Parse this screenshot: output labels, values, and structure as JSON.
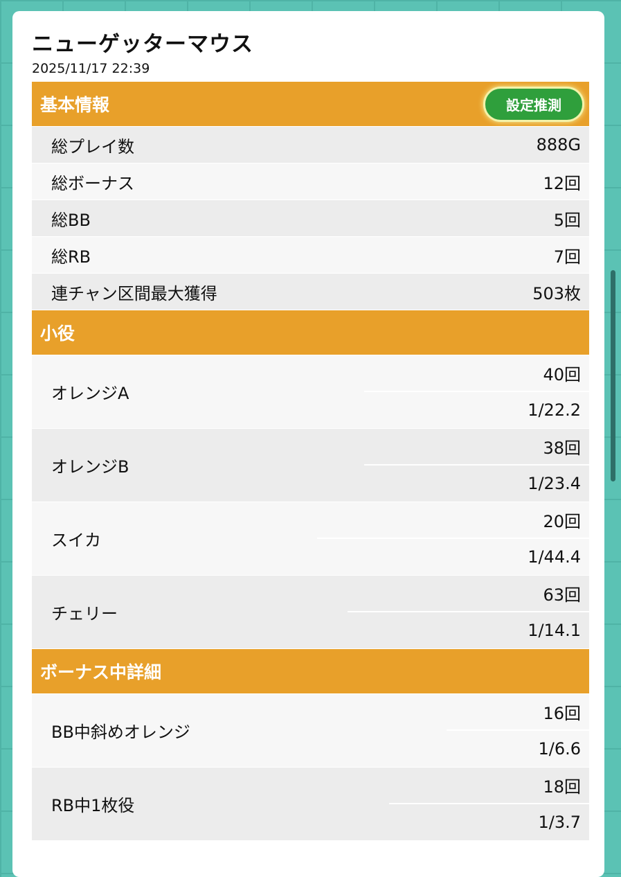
{
  "title": "ニューゲッターマウス",
  "date": "2025/11/17 22:39",
  "basic": {
    "header": "基本情報",
    "button": "設定推測",
    "rows": [
      {
        "label": "総プレイ数",
        "value": "888G"
      },
      {
        "label": "総ボーナス",
        "value": "12回"
      },
      {
        "label": "総BB",
        "value": "5回"
      },
      {
        "label": "総RB",
        "value": "7回"
      },
      {
        "label": "連チャン区間最大獲得",
        "value": "503枚"
      }
    ]
  },
  "small": {
    "header": "小役",
    "rows": [
      {
        "label": "オレンジA",
        "count": "40回",
        "prob": "1/22.2"
      },
      {
        "label": "オレンジB",
        "count": "38回",
        "prob": "1/23.4"
      },
      {
        "label": "スイカ",
        "count": "20回",
        "prob": "1/44.4"
      },
      {
        "label": "チェリー",
        "count": "63回",
        "prob": "1/14.1"
      }
    ]
  },
  "bonus": {
    "header": "ボーナス中詳細",
    "rows": [
      {
        "label": "BB中斜めオレンジ",
        "count": "16回",
        "prob": "1/6.6"
      },
      {
        "label": "RB中1枚役",
        "count": "18回",
        "prob": "1/3.7"
      }
    ]
  },
  "colors": {
    "background": "#5bc2b4",
    "section": "#e8a02a",
    "button": "#2f9f3c"
  }
}
